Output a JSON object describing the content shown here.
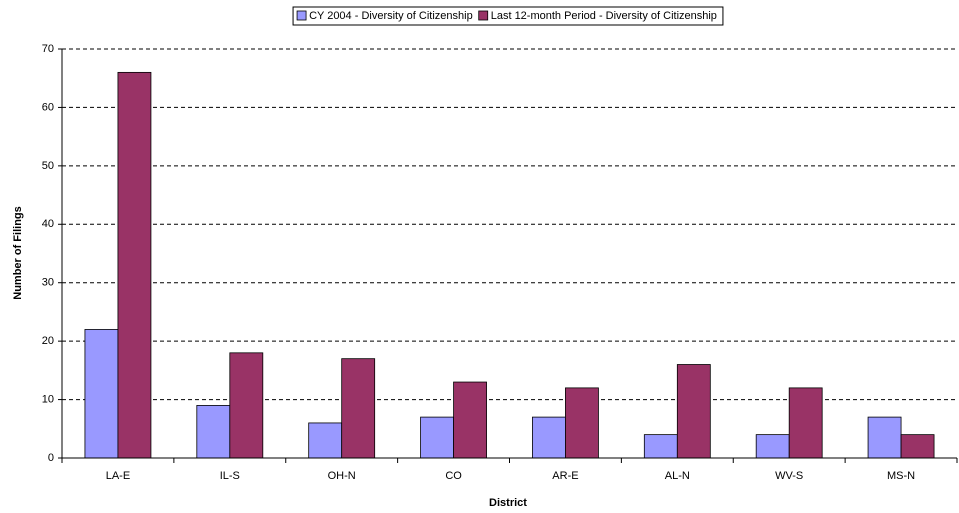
{
  "chart_data": {
    "type": "bar",
    "x_label": "District",
    "y_label": "Number of Filings",
    "categories": [
      "LA-E",
      "IL-S",
      "OH-N",
      "CO",
      "AR-E",
      "AL-N",
      "WV-S",
      "MS-N"
    ],
    "series": [
      {
        "name": "CY 2004 - Diversity of Citizenship",
        "color": "#9999ff",
        "values": [
          22,
          9,
          6,
          7,
          7,
          4,
          4,
          7
        ]
      },
      {
        "name": "Last 12-month Period - Diversity of Citizenship",
        "color": "#993366",
        "values": [
          66,
          18,
          17,
          13,
          12,
          16,
          12,
          4
        ]
      }
    ],
    "ylim": [
      0,
      70
    ],
    "yticks": [
      0,
      10,
      20,
      30,
      40,
      50,
      60,
      70
    ],
    "grid": true,
    "legend": "top"
  }
}
